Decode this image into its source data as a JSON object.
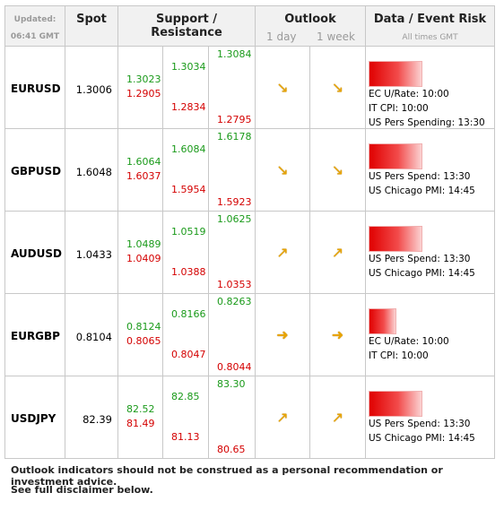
{
  "header": {
    "updated_label": "Updated:",
    "updated_time": "06:41 GMT",
    "spot": "Spot",
    "support_resistance": "Support / Resistance",
    "outlook": "Outlook",
    "outlook_1day": "1 day",
    "outlook_1week": "1 week",
    "event_risk": "Data / Event Risk",
    "all_times": "All times GMT"
  },
  "rows": [
    {
      "pair": "EURUSD",
      "spot": "1.3006",
      "s1": "1.3023",
      "s1b": "1.2905",
      "s2": "1.3034",
      "s2b": "1.2834",
      "s3": "1.3084",
      "s3b": "1.2795",
      "day_icon": "down-right-arrow-icon",
      "week_icon": "down-right-arrow-icon",
      "risk_level": 0.8,
      "events": [
        "EC U/Rate: 10:00",
        "IT CPI: 10:00",
        "US Pers Spending: 13:30"
      ]
    },
    {
      "pair": "GBPUSD",
      "spot": "1.6048",
      "s1": "1.6064",
      "s1b": "1.6037",
      "s2": "1.6084",
      "s2b": "1.5954",
      "s3": "1.6178",
      "s3b": "1.5923",
      "day_icon": "down-right-arrow-icon",
      "week_icon": "down-right-arrow-icon",
      "risk_level": 0.8,
      "events": [
        "US Pers Spend: 13:30",
        "US Chicago PMI: 14:45"
      ]
    },
    {
      "pair": "AUDUSD",
      "spot": "1.0433",
      "s1": "1.0489",
      "s1b": "1.0409",
      "s2": "1.0519",
      "s2b": "1.0388",
      "s3": "1.0625",
      "s3b": "1.0353",
      "day_icon": "up-right-arrow-icon",
      "week_icon": "up-right-arrow-icon",
      "risk_level": 0.8,
      "events": [
        "US Pers Spend: 13:30",
        "US Chicago PMI: 14:45"
      ]
    },
    {
      "pair": "EURGBP",
      "spot": "0.8104",
      "s1": "0.8124",
      "s1b": "0.8065",
      "s2": "0.8166",
      "s2b": "0.8047",
      "s3": "0.8263",
      "s3b": "0.8044",
      "day_icon": "right-arrow-icon",
      "week_icon": "right-arrow-icon",
      "risk_level": 0.4,
      "events": [
        "EC U/Rate: 10:00",
        "IT CPI: 10:00"
      ]
    },
    {
      "pair": "USDJPY",
      "spot": "82.39",
      "s1": "82.52",
      "s1b": "81.49",
      "s2": "82.85",
      "s2b": "81.13",
      "s3": "83.30",
      "s3b": "80.65",
      "day_icon": "up-right-arrow-icon",
      "week_icon": "up-right-arrow-icon",
      "risk_level": 0.8,
      "events": [
        "US Pers Spend: 13:30",
        "US Chicago PMI: 14:45"
      ]
    }
  ],
  "footer": {
    "line1": "Outlook indicators should not be construed as a personal recommendation or investment advice.",
    "line2": "See full disclaimer below."
  },
  "colors": {
    "support_green": "#1a9a1a",
    "resistance_red": "#d40000",
    "arrow_gold": "#e8a400"
  }
}
